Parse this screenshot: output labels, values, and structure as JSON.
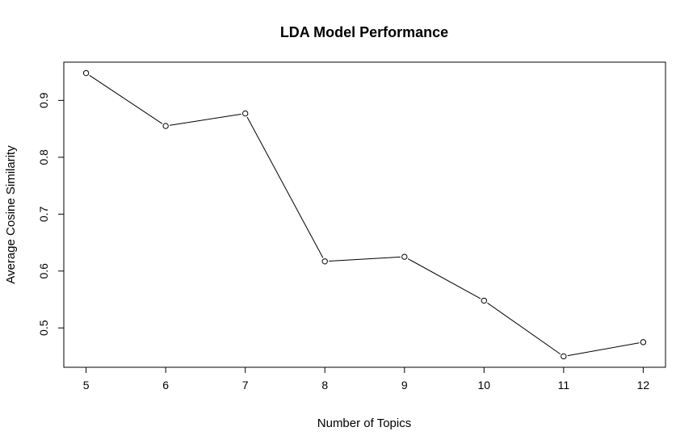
{
  "chart_data": {
    "type": "line",
    "title": "LDA Model Performance",
    "xlabel": "Number of Topics",
    "ylabel": "Average Cosine Similarity",
    "x": [
      5,
      6,
      7,
      8,
      9,
      10,
      11,
      12
    ],
    "y": [
      0.948,
      0.855,
      0.877,
      0.617,
      0.625,
      0.548,
      0.45,
      0.475
    ],
    "xticks": [
      "5",
      "6",
      "7",
      "8",
      "9",
      "10",
      "11",
      "12"
    ],
    "yticks": [
      "0.5",
      "0.6",
      "0.7",
      "0.8",
      "0.9"
    ],
    "xlim": [
      4.72,
      12.28
    ],
    "ylim": [
      0.4308,
      0.9672
    ],
    "grid": false,
    "legend": "none",
    "marker": "open-circle",
    "line_color": "#000000"
  }
}
